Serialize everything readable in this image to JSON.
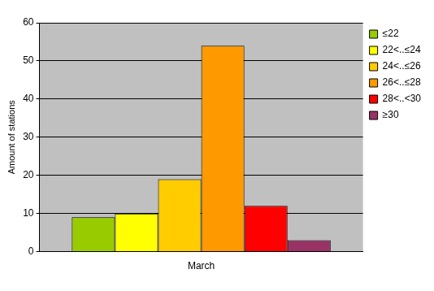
{
  "chart_data": {
    "type": "bar",
    "categories": [
      "March"
    ],
    "ylabel": "Amount of stations",
    "series": [
      {
        "name": "≤22",
        "color": "#99cc00",
        "values": [
          9
        ]
      },
      {
        "name": "22<..≤24",
        "color": "#ffff00",
        "values": [
          10
        ]
      },
      {
        "name": "24<..≤26",
        "color": "#ffcc00",
        "values": [
          19
        ]
      },
      {
        "name": "26<..≤28",
        "color": "#ff9900",
        "values": [
          54
        ]
      },
      {
        "name": "28<..<30",
        "color": "#ff0000",
        "values": [
          12
        ]
      },
      {
        "name": "≥30",
        "color": "#993366",
        "values": [
          3
        ]
      }
    ],
    "ylim": [
      0,
      60
    ],
    "yticks": [
      0,
      10,
      20,
      30,
      40,
      50,
      60
    ],
    "grid": true,
    "legend": "right"
  }
}
